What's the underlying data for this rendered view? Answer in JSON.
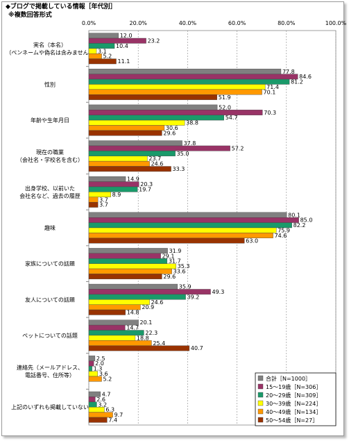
{
  "chart_data": {
    "type": "hbar",
    "title": "◆ブログで掲載している情報［年代別］",
    "subtitle": "※複数回答形式",
    "categories": [
      [
        "実名（本名）",
        "（ペンネームや偽名は含みません）"
      ],
      [
        "性別"
      ],
      [
        "年齢や生年月日"
      ],
      [
        "現在の職業",
        "（会社名・学校名を含む）"
      ],
      [
        "出身学校、以前いた",
        "会社名など、過去の履歴"
      ],
      [
        "趣味"
      ],
      [
        "家族についての話題"
      ],
      [
        "友人についての話題"
      ],
      [
        "ペットについての話題"
      ],
      [
        "連絡先（メールアドレス、",
        "電話番号、住所等）"
      ],
      [
        "上記のいずれも掲載していない"
      ]
    ],
    "xlim": [
      0,
      100
    ],
    "xticks": [
      {
        "value": 0,
        "label": "0.0%"
      },
      {
        "value": 20,
        "label": "20.0%"
      },
      {
        "value": 40,
        "label": "40.0%"
      },
      {
        "value": 60,
        "label": "60.0%"
      },
      {
        "value": 80,
        "label": "80.0%"
      },
      {
        "value": 100,
        "label": "100.0%"
      }
    ],
    "grid": true,
    "legend": "bottom-right",
    "series": [
      {
        "name": "合計［N=1000］",
        "color": "#808080",
        "values": [
          12.0,
          77.8,
          52.0,
          37.8,
          14.9,
          80.1,
          31.9,
          35.9,
          20.1,
          2.5,
          4.7
        ],
        "value_labels": [
          "12.0",
          "77.8",
          "52.0",
          "37.8",
          "14.9",
          "80.1",
          "31.9",
          "35.9",
          "20.1",
          "2.5",
          "4.7"
        ]
      },
      {
        "name": "15～19歳［N=306］",
        "color": "#993366",
        "values": [
          23.2,
          84.6,
          70.3,
          57.2,
          20.3,
          85.0,
          29.1,
          49.3,
          14.7,
          2.0,
          2.6
        ],
        "value_labels": [
          "23.2",
          "84.6",
          "70.3",
          "57.2",
          "20.3",
          "85.0",
          "29.1",
          "49.3",
          "14.7",
          "2.0",
          "2.6"
        ]
      },
      {
        "name": "20～29歳［N=309］",
        "color": "#1a9a6a",
        "values": [
          10.4,
          81.2,
          54.7,
          35.0,
          19.7,
          82.2,
          31.7,
          39.2,
          22.3,
          1.3,
          3.2
        ],
        "value_labels": [
          "10.4",
          "81.2",
          "54.7",
          "35.0",
          "19.7",
          "82.2",
          "31.7",
          "39.2",
          "22.3",
          "1.3",
          "3.2"
        ]
      },
      {
        "name": "30～39歳［N=224］",
        "color": "#ffff00",
        "values": [
          3.1,
          71.4,
          38.8,
          23.7,
          8.9,
          75.9,
          35.3,
          24.6,
          18.8,
          3.6,
          6.3
        ],
        "value_labels": [
          "3.1",
          "71.4",
          "38.8",
          "23.7",
          "8.9",
          "75.9",
          "35.3",
          "24.6",
          "18.8",
          "3.6",
          "6.3"
        ]
      },
      {
        "name": "40～49歳［N=134］",
        "color": "#ff9900",
        "values": [
          5.2,
          70.1,
          30.6,
          24.6,
          3.7,
          74.6,
          33.6,
          20.9,
          25.4,
          5.2,
          9.7
        ],
        "value_labels": [
          "5.2",
          "70.1",
          "30.6",
          "24.6",
          "3.7",
          "74.6",
          "33.6",
          "20.9",
          "25.4",
          "5.2",
          "9.7"
        ]
      },
      {
        "name": "50～54歳［N=27］",
        "color": "#993300",
        "values": [
          11.1,
          51.9,
          29.6,
          33.3,
          3.7,
          63.0,
          29.6,
          14.8,
          40.7,
          null,
          7.4
        ],
        "value_labels": [
          "11.1",
          "51.9",
          "29.6",
          "33.3",
          "3.7",
          "63.0",
          "29.6",
          "14.8",
          "40.7",
          null,
          "7.4"
        ]
      }
    ]
  }
}
